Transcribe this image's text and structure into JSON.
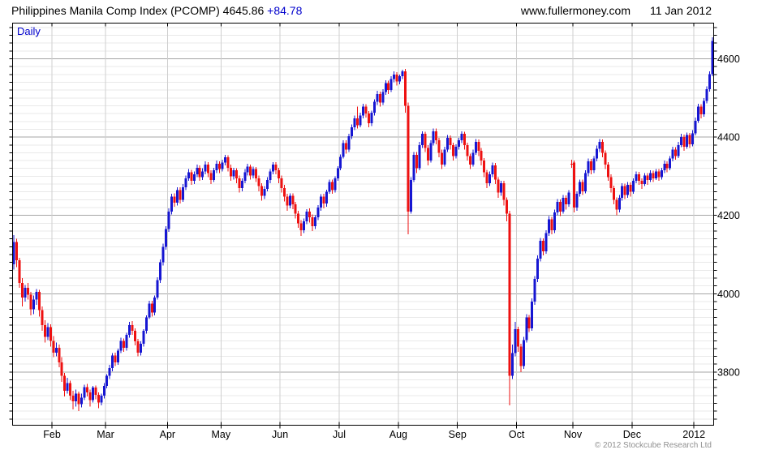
{
  "header": {
    "title": "Philippines Manila Comp Index (PCOMP)",
    "last_price": "4645.86",
    "change": "+84.78",
    "website": "www.fullermoney.com",
    "date": "11 Jan 2012"
  },
  "chart": {
    "timeframe_label": "Daily",
    "copyright": "© 2012 Stockcube Research Ltd"
  },
  "chart_data": {
    "type": "candlestick",
    "title": "Philippines Manila Comp Index (PCOMP) daily candles, Jan 2011 - 11 Jan 2012",
    "xlabel": "",
    "ylabel": "",
    "ylim": [
      3664,
      4691
    ],
    "y_major_ticks": [
      3800,
      4000,
      4200,
      4400,
      4600
    ],
    "y_minor_step": 20,
    "grid": "on",
    "legend": "none",
    "x_tick_labels": [
      "Feb",
      "Mar",
      "Apr",
      "May",
      "Jun",
      "Jul",
      "Aug",
      "Sep",
      "Oct",
      "Nov",
      "Dec",
      "2012"
    ],
    "x_tick_day_index": [
      14,
      33,
      55,
      74,
      95,
      116,
      137,
      158,
      179,
      199,
      220,
      242
    ],
    "last_close": 4645.86,
    "change_value": 84.78,
    "colors": {
      "up": "#1616d2",
      "down": "#ee1111",
      "header_accent": "#0000cc",
      "grid_minor": "#e9e9e9",
      "grid_major": "#a6a6a6",
      "grid_month": "#cfcfcf",
      "frame": "#000000",
      "copyright_gray": "#909090"
    },
    "candles": [
      [
        4075,
        4150,
        4062,
        4132
      ],
      [
        4132,
        4140,
        4068,
        4085
      ],
      [
        4085,
        4092,
        4015,
        4028
      ],
      [
        4028,
        4040,
        3968,
        3990
      ],
      [
        3990,
        4022,
        3980,
        4015
      ],
      [
        4015,
        4028,
        3985,
        3998
      ],
      [
        3998,
        4005,
        3945,
        3960
      ],
      [
        3960,
        3995,
        3948,
        3985
      ],
      [
        3985,
        4012,
        3972,
        4005
      ],
      [
        4005,
        4010,
        3942,
        3958
      ],
      [
        3958,
        3968,
        3905,
        3920
      ],
      [
        3920,
        3932,
        3875,
        3890
      ],
      [
        3890,
        3925,
        3882,
        3915
      ],
      [
        3915,
        3922,
        3865,
        3880
      ],
      [
        3880,
        3892,
        3838,
        3850
      ],
      [
        3850,
        3875,
        3840,
        3862
      ],
      [
        3862,
        3870,
        3812,
        3825
      ],
      [
        3825,
        3838,
        3775,
        3790
      ],
      [
        3790,
        3798,
        3738,
        3752
      ],
      [
        3752,
        3785,
        3745,
        3772
      ],
      [
        3772,
        3778,
        3728,
        3740
      ],
      [
        3740,
        3752,
        3705,
        3725
      ],
      [
        3725,
        3755,
        3712,
        3745
      ],
      [
        3745,
        3750,
        3700,
        3718
      ],
      [
        3718,
        3745,
        3710,
        3735
      ],
      [
        3735,
        3768,
        3728,
        3762
      ],
      [
        3762,
        3770,
        3738,
        3748
      ],
      [
        3748,
        3755,
        3712,
        3728
      ],
      [
        3728,
        3765,
        3722,
        3760
      ],
      [
        3760,
        3766,
        3730,
        3742
      ],
      [
        3742,
        3748,
        3708,
        3722
      ],
      [
        3722,
        3745,
        3715,
        3740
      ],
      [
        3740,
        3772,
        3732,
        3765
      ],
      [
        3765,
        3795,
        3758,
        3790
      ],
      [
        3790,
        3818,
        3782,
        3810
      ],
      [
        3810,
        3848,
        3802,
        3842
      ],
      [
        3842,
        3850,
        3815,
        3825
      ],
      [
        3825,
        3860,
        3818,
        3855
      ],
      [
        3855,
        3888,
        3848,
        3880
      ],
      [
        3880,
        3886,
        3852,
        3862
      ],
      [
        3862,
        3900,
        3855,
        3895
      ],
      [
        3895,
        3928,
        3888,
        3920
      ],
      [
        3920,
        3930,
        3895,
        3905
      ],
      [
        3905,
        3912,
        3868,
        3878
      ],
      [
        3878,
        3885,
        3840,
        3850
      ],
      [
        3850,
        3878,
        3842,
        3872
      ],
      [
        3872,
        3910,
        3865,
        3905
      ],
      [
        3905,
        3945,
        3898,
        3940
      ],
      [
        3940,
        3982,
        3935,
        3975
      ],
      [
        3975,
        3982,
        3942,
        3952
      ],
      [
        3952,
        3995,
        3945,
        3990
      ],
      [
        3990,
        4042,
        3985,
        4035
      ],
      [
        4035,
        4088,
        4028,
        4080
      ],
      [
        4080,
        4128,
        4072,
        4120
      ],
      [
        4120,
        4172,
        4112,
        4165
      ],
      [
        4165,
        4218,
        4158,
        4210
      ],
      [
        4210,
        4255,
        4202,
        4248
      ],
      [
        4248,
        4256,
        4222,
        4232
      ],
      [
        4232,
        4272,
        4225,
        4265
      ],
      [
        4265,
        4272,
        4230,
        4240
      ],
      [
        4240,
        4280,
        4235,
        4272
      ],
      [
        4272,
        4302,
        4265,
        4295
      ],
      [
        4295,
        4318,
        4288,
        4310
      ],
      [
        4310,
        4316,
        4278,
        4288
      ],
      [
        4288,
        4312,
        4280,
        4305
      ],
      [
        4305,
        4330,
        4298,
        4322
      ],
      [
        4322,
        4328,
        4288,
        4298
      ],
      [
        4298,
        4320,
        4290,
        4312
      ],
      [
        4312,
        4338,
        4305,
        4330
      ],
      [
        4330,
        4336,
        4298,
        4308
      ],
      [
        4308,
        4315,
        4280,
        4290
      ],
      [
        4290,
        4322,
        4285,
        4315
      ],
      [
        4315,
        4340,
        4308,
        4332
      ],
      [
        4332,
        4338,
        4308,
        4318
      ],
      [
        4318,
        4342,
        4312,
        4335
      ],
      [
        4335,
        4355,
        4328,
        4348
      ],
      [
        4348,
        4354,
        4312,
        4322
      ],
      [
        4322,
        4330,
        4288,
        4300
      ],
      [
        4300,
        4322,
        4292,
        4315
      ],
      [
        4315,
        4320,
        4282,
        4295
      ],
      [
        4295,
        4302,
        4258,
        4270
      ],
      [
        4270,
        4295,
        4262,
        4288
      ],
      [
        4288,
        4318,
        4282,
        4310
      ],
      [
        4310,
        4332,
        4302,
        4325
      ],
      [
        4325,
        4330,
        4292,
        4302
      ],
      [
        4302,
        4325,
        4295,
        4318
      ],
      [
        4318,
        4324,
        4285,
        4295
      ],
      [
        4295,
        4302,
        4262,
        4275
      ],
      [
        4275,
        4282,
        4238,
        4250
      ],
      [
        4250,
        4275,
        4242,
        4268
      ],
      [
        4268,
        4298,
        4262,
        4290
      ],
      [
        4290,
        4318,
        4282,
        4312
      ],
      [
        4312,
        4336,
        4305,
        4330
      ],
      [
        4330,
        4336,
        4305,
        4315
      ],
      [
        4315,
        4322,
        4282,
        4295
      ],
      [
        4295,
        4302,
        4258,
        4270
      ],
      [
        4270,
        4278,
        4236,
        4248
      ],
      [
        4248,
        4255,
        4212,
        4225
      ],
      [
        4225,
        4256,
        4218,
        4250
      ],
      [
        4250,
        4256,
        4216,
        4228
      ],
      [
        4228,
        4235,
        4192,
        4205
      ],
      [
        4205,
        4212,
        4168,
        4180
      ],
      [
        4180,
        4188,
        4148,
        4162
      ],
      [
        4162,
        4192,
        4155,
        4185
      ],
      [
        4185,
        4216,
        4178,
        4210
      ],
      [
        4210,
        4218,
        4182,
        4195
      ],
      [
        4195,
        4202,
        4160,
        4172
      ],
      [
        4172,
        4200,
        4165,
        4195
      ],
      [
        4195,
        4226,
        4188,
        4220
      ],
      [
        4220,
        4254,
        4212,
        4248
      ],
      [
        4248,
        4255,
        4218,
        4230
      ],
      [
        4230,
        4266,
        4222,
        4260
      ],
      [
        4260,
        4292,
        4255,
        4285
      ],
      [
        4285,
        4292,
        4255,
        4265
      ],
      [
        4265,
        4300,
        4258,
        4295
      ],
      [
        4295,
        4326,
        4288,
        4320
      ],
      [
        4320,
        4356,
        4315,
        4350
      ],
      [
        4350,
        4392,
        4345,
        4385
      ],
      [
        4385,
        4392,
        4358,
        4368
      ],
      [
        4368,
        4408,
        4362,
        4402
      ],
      [
        4402,
        4432,
        4395,
        4425
      ],
      [
        4425,
        4455,
        4418,
        4448
      ],
      [
        4448,
        4478,
        4422,
        4430
      ],
      [
        4430,
        4462,
        4425,
        4455
      ],
      [
        4455,
        4485,
        4448,
        4478
      ],
      [
        4478,
        4484,
        4450,
        4460
      ],
      [
        4460,
        4466,
        4425,
        4435
      ],
      [
        4435,
        4468,
        4428,
        4462
      ],
      [
        4462,
        4496,
        4455,
        4490
      ],
      [
        4490,
        4518,
        4482,
        4510
      ],
      [
        4510,
        4516,
        4478,
        4488
      ],
      [
        4488,
        4522,
        4482,
        4515
      ],
      [
        4515,
        4545,
        4508,
        4538
      ],
      [
        4538,
        4544,
        4510,
        4520
      ],
      [
        4520,
        4555,
        4515,
        4548
      ],
      [
        4548,
        4568,
        4540,
        4560
      ],
      [
        4560,
        4566,
        4532,
        4542
      ],
      [
        4542,
        4560,
        4535,
        4555
      ],
      [
        4555,
        4572,
        4548,
        4568
      ],
      [
        4568,
        4574,
        4462,
        4480
      ],
      [
        4480,
        4488,
        4152,
        4210
      ],
      [
        4210,
        4298,
        4205,
        4290
      ],
      [
        4290,
        4362,
        4285,
        4355
      ],
      [
        4355,
        4362,
        4308,
        4320
      ],
      [
        4320,
        4388,
        4315,
        4380
      ],
      [
        4380,
        4415,
        4372,
        4408
      ],
      [
        4408,
        4414,
        4362,
        4372
      ],
      [
        4372,
        4380,
        4328,
        4340
      ],
      [
        4340,
        4392,
        4335,
        4385
      ],
      [
        4385,
        4422,
        4378,
        4415
      ],
      [
        4415,
        4422,
        4382,
        4392
      ],
      [
        4392,
        4398,
        4348,
        4360
      ],
      [
        4360,
        4368,
        4318,
        4330
      ],
      [
        4330,
        4375,
        4325,
        4368
      ],
      [
        4368,
        4405,
        4362,
        4398
      ],
      [
        4398,
        4404,
        4368,
        4380
      ],
      [
        4380,
        4386,
        4340,
        4352
      ],
      [
        4352,
        4382,
        4345,
        4375
      ],
      [
        4375,
        4398,
        4368,
        4392
      ],
      [
        4392,
        4415,
        4385,
        4408
      ],
      [
        4408,
        4414,
        4368,
        4380
      ],
      [
        4380,
        4386,
        4340,
        4352
      ],
      [
        4352,
        4358,
        4318,
        4330
      ],
      [
        4330,
        4368,
        4325,
        4360
      ],
      [
        4360,
        4395,
        4355,
        4388
      ],
      [
        4388,
        4394,
        4352,
        4365
      ],
      [
        4365,
        4372,
        4328,
        4340
      ],
      [
        4340,
        4346,
        4298,
        4310
      ],
      [
        4310,
        4316,
        4270,
        4282
      ],
      [
        4282,
        4312,
        4275,
        4305
      ],
      [
        4305,
        4335,
        4298,
        4328
      ],
      [
        4328,
        4334,
        4280,
        4292
      ],
      [
        4292,
        4298,
        4245,
        4258
      ],
      [
        4258,
        4288,
        4250,
        4282
      ],
      [
        4282,
        4288,
        4225,
        4240
      ],
      [
        4240,
        4246,
        4185,
        4205
      ],
      [
        4205,
        4212,
        3715,
        3790
      ],
      [
        3790,
        3870,
        3782,
        3848
      ],
      [
        3848,
        3928,
        3840,
        3910
      ],
      [
        3910,
        3916,
        3852,
        3865
      ],
      [
        3865,
        3872,
        3800,
        3815
      ],
      [
        3815,
        3890,
        3808,
        3882
      ],
      [
        3882,
        3948,
        3875,
        3940
      ],
      [
        3940,
        3946,
        3902,
        3912
      ],
      [
        3912,
        3988,
        3905,
        3980
      ],
      [
        3980,
        4045,
        3972,
        4038
      ],
      [
        4038,
        4098,
        4030,
        4090
      ],
      [
        4090,
        4142,
        4082,
        4135
      ],
      [
        4135,
        4141,
        4098,
        4108
      ],
      [
        4108,
        4162,
        4102,
        4155
      ],
      [
        4155,
        4198,
        4148,
        4190
      ],
      [
        4190,
        4196,
        4152,
        4162
      ],
      [
        4162,
        4215,
        4155,
        4208
      ],
      [
        4208,
        4242,
        4200,
        4235
      ],
      [
        4235,
        4241,
        4198,
        4210
      ],
      [
        4210,
        4252,
        4205,
        4245
      ],
      [
        4245,
        4251,
        4215,
        4228
      ],
      [
        4228,
        4265,
        4222,
        4258
      ],
      [
        4332,
        4342,
        4322,
        4330
      ],
      [
        4335,
        4340,
        4208,
        4220
      ],
      [
        4220,
        4262,
        4212,
        4255
      ],
      [
        4255,
        4292,
        4248,
        4285
      ],
      [
        4285,
        4291,
        4252,
        4262
      ],
      [
        4262,
        4315,
        4256,
        4308
      ],
      [
        4308,
        4345,
        4300,
        4338
      ],
      [
        4338,
        4344,
        4305,
        4315
      ],
      [
        4315,
        4352,
        4308,
        4345
      ],
      [
        4345,
        4378,
        4338,
        4370
      ],
      [
        4370,
        4395,
        4362,
        4388
      ],
      [
        4388,
        4394,
        4348,
        4360
      ],
      [
        4360,
        4366,
        4318,
        4330
      ],
      [
        4330,
        4336,
        4288,
        4298
      ],
      [
        4298,
        4305,
        4258,
        4270
      ],
      [
        4270,
        4276,
        4228,
        4240
      ],
      [
        4240,
        4246,
        4200,
        4215
      ],
      [
        4215,
        4252,
        4208,
        4245
      ],
      [
        4245,
        4282,
        4238,
        4275
      ],
      [
        4275,
        4281,
        4242,
        4252
      ],
      [
        4252,
        4285,
        4245,
        4278
      ],
      [
        4278,
        4284,
        4248,
        4260
      ],
      [
        4260,
        4295,
        4255,
        4288
      ],
      [
        4288,
        4312,
        4282,
        4305
      ],
      [
        4305,
        4311,
        4278,
        4288
      ],
      [
        4288,
        4295,
        4268,
        4280
      ],
      [
        4280,
        4308,
        4275,
        4302
      ],
      [
        4302,
        4308,
        4278,
        4290
      ],
      [
        4290,
        4315,
        4285,
        4308
      ],
      [
        4308,
        4314,
        4285,
        4295
      ],
      [
        4295,
        4318,
        4290,
        4312
      ],
      [
        4312,
        4318,
        4288,
        4298
      ],
      [
        4298,
        4322,
        4292,
        4315
      ],
      [
        4315,
        4340,
        4308,
        4332
      ],
      [
        4332,
        4338,
        4310,
        4320
      ],
      [
        4320,
        4352,
        4315,
        4345
      ],
      [
        4345,
        4375,
        4338,
        4368
      ],
      [
        4368,
        4374,
        4342,
        4352
      ],
      [
        4352,
        4388,
        4346,
        4380
      ],
      [
        4380,
        4408,
        4374,
        4400
      ],
      [
        4400,
        4406,
        4365,
        4375
      ],
      [
        4375,
        4412,
        4370,
        4405
      ],
      [
        4405,
        4411,
        4372,
        4382
      ],
      [
        4382,
        4418,
        4376,
        4410
      ],
      [
        4410,
        4450,
        4404,
        4442
      ],
      [
        4442,
        4485,
        4436,
        4478
      ],
      [
        4478,
        4484,
        4448,
        4458
      ],
      [
        4458,
        4500,
        4452,
        4492
      ],
      [
        4492,
        4530,
        4486,
        4522
      ],
      [
        4522,
        4568,
        4516,
        4561
      ],
      [
        4561,
        4655,
        4556,
        4646
      ]
    ]
  }
}
